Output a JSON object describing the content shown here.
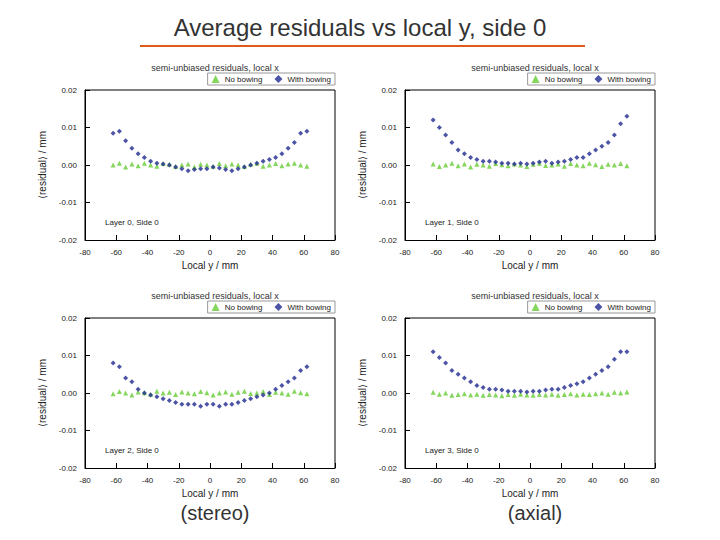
{
  "title": "Average residuals vs local y, side 0",
  "captions": [
    "(stereo)",
    "(axial)"
  ],
  "chart_data": [
    {
      "type": "scatter",
      "title": "semi-unbiased residuals, local x",
      "xlabel": "Local y / mm",
      "ylabel": "⟨residual⟩ / mm",
      "annotation": "Layer 0, Side 0",
      "x": [
        -62,
        -58,
        -54,
        -50,
        -46,
        -42,
        -38,
        -34,
        -30,
        -26,
        -22,
        -18,
        -14,
        -10,
        -6,
        -2,
        2,
        6,
        10,
        14,
        18,
        22,
        26,
        30,
        34,
        38,
        42,
        46,
        50,
        54,
        58,
        62
      ],
      "series": [
        {
          "name": "No bowing",
          "color": "#66cc33",
          "marker": "triangle",
          "values": [
            0.0,
            0.0005,
            -0.0005,
            0.0003,
            -0.0002,
            0.0005,
            0.0,
            -0.0003,
            0.0004,
            0.0002,
            -0.0004,
            0.0,
            0.0003,
            -0.0005,
            0.0002,
            0.0,
            -0.0003,
            0.0004,
            -0.0002,
            0.0003,
            0.0,
            -0.0004,
            0.0002,
            0.0005,
            -0.0003,
            0.0,
            0.0004,
            -0.0002,
            0.0003,
            0.0005,
            0.0,
            -0.0003
          ]
        },
        {
          "name": "With bowing",
          "color": "#1f2a8f",
          "marker": "diamond",
          "values": [
            0.0085,
            0.009,
            0.0065,
            0.0045,
            0.003,
            0.002,
            0.001,
            0.0005,
            0.0003,
            0.0,
            -0.0005,
            -0.001,
            -0.0015,
            -0.0012,
            -0.001,
            -0.001,
            -0.0005,
            -0.0008,
            -0.0012,
            -0.0015,
            -0.001,
            -0.0005,
            0.0,
            0.0005,
            0.001,
            0.0015,
            0.002,
            0.003,
            0.0045,
            0.006,
            0.0085,
            0.009
          ]
        }
      ],
      "xlim": [
        -80,
        80
      ],
      "xticks": [
        -80,
        -60,
        -40,
        -20,
        0,
        20,
        40,
        60,
        80
      ],
      "ylim": [
        -0.02,
        0.02
      ],
      "yticks": [
        -0.02,
        -0.01,
        {
          "value": 0,
          "label": "0.00"
        },
        0.01,
        0.02
      ],
      "legend": "upper right",
      "grid": false
    },
    {
      "type": "scatter",
      "title": "semi-unbiased residuals, local x",
      "xlabel": "Local y / mm",
      "ylabel": "⟨residual⟩ / mm",
      "annotation": "Layer 1, Side 0",
      "x": [
        -62,
        -58,
        -54,
        -50,
        -46,
        -42,
        -38,
        -34,
        -30,
        -26,
        -22,
        -18,
        -14,
        -10,
        -6,
        -2,
        2,
        6,
        10,
        14,
        18,
        22,
        26,
        30,
        34,
        38,
        42,
        46,
        50,
        54,
        58,
        62
      ],
      "series": [
        {
          "name": "No bowing",
          "color": "#66cc33",
          "marker": "triangle",
          "values": [
            0.0003,
            -0.0004,
            0.0,
            0.0005,
            -0.0002,
            0.0003,
            -0.0005,
            0.0002,
            0.0,
            -0.0003,
            0.0004,
            0.0001,
            -0.0002,
            0.0003,
            0.0,
            -0.0004,
            0.0002,
            0.0005,
            -0.0001,
            0.0,
            0.0003,
            -0.0003,
            0.0004,
            0.0,
            -0.0002,
            0.0005,
            0.0001,
            -0.0004,
            0.0002,
            0.0,
            0.0004,
            -0.0002
          ]
        },
        {
          "name": "With bowing",
          "color": "#1f2a8f",
          "marker": "diamond",
          "values": [
            0.012,
            0.01,
            0.008,
            0.006,
            0.004,
            0.003,
            0.002,
            0.0015,
            0.001,
            0.001,
            0.0008,
            0.0005,
            0.0005,
            0.0003,
            0.0005,
            0.0003,
            0.0005,
            0.0008,
            0.001,
            0.0005,
            0.0008,
            0.001,
            0.0015,
            0.002,
            0.002,
            0.003,
            0.004,
            0.005,
            0.006,
            0.008,
            0.011,
            0.013
          ]
        }
      ],
      "xlim": [
        -80,
        80
      ],
      "xticks": [
        -80,
        -60,
        -40,
        -20,
        0,
        20,
        40,
        60,
        80
      ],
      "ylim": [
        -0.02,
        0.02
      ],
      "yticks": [
        -0.02,
        -0.01,
        {
          "value": 0,
          "label": "0.00"
        },
        0.01,
        0.02
      ],
      "legend": "upper right",
      "grid": false
    },
    {
      "type": "scatter",
      "title": "semi-unbiased residuals, local x",
      "xlabel": "Local y / mm",
      "ylabel": "⟨residual⟩ / mm",
      "annotation": "Layer 2, Side 0",
      "x": [
        -62,
        -58,
        -54,
        -50,
        -46,
        -42,
        -38,
        -34,
        -30,
        -26,
        -22,
        -18,
        -14,
        -10,
        -6,
        -2,
        2,
        6,
        10,
        14,
        18,
        22,
        26,
        30,
        34,
        38,
        42,
        46,
        50,
        54,
        58,
        62
      ],
      "series": [
        {
          "name": "No bowing",
          "color": "#66cc33",
          "marker": "triangle",
          "values": [
            -0.0002,
            0.0004,
            0.0,
            -0.0005,
            0.0003,
            0.0001,
            -0.0003,
            0.0005,
            0.0,
            0.0002,
            -0.0004,
            0.0003,
            0.0,
            -0.0002,
            0.0004,
            0.0001,
            -0.0005,
            0.0,
            0.0003,
            -0.0003,
            0.0002,
            0.0005,
            -0.0001,
            0.0,
            0.0004,
            -0.0004,
            0.0002,
            0.0,
            -0.0003,
            0.0005,
            0.0001,
            -0.0002
          ]
        },
        {
          "name": "With bowing",
          "color": "#1f2a8f",
          "marker": "diamond",
          "values": [
            0.008,
            0.007,
            0.004,
            0.003,
            0.001,
            0.0,
            -0.0005,
            -0.001,
            -0.0015,
            -0.002,
            -0.0025,
            -0.003,
            -0.003,
            -0.003,
            -0.0035,
            -0.003,
            -0.003,
            -0.0035,
            -0.003,
            -0.003,
            -0.0025,
            -0.002,
            -0.0015,
            -0.001,
            -0.0005,
            0.0,
            0.001,
            0.002,
            0.003,
            0.004,
            0.006,
            0.007
          ]
        }
      ],
      "xlim": [
        -80,
        80
      ],
      "xticks": [
        -80,
        -60,
        -40,
        -20,
        0,
        20,
        40,
        60,
        80
      ],
      "ylim": [
        -0.02,
        0.02
      ],
      "yticks": [
        -0.02,
        -0.01,
        {
          "value": 0,
          "label": "0.00"
        },
        0.01,
        0.02
      ],
      "legend": "upper right",
      "grid": false
    },
    {
      "type": "scatter",
      "title": "semi-unbiased residuals, local x",
      "xlabel": "Local y / mm",
      "ylabel": "⟨residual⟩ / mm",
      "annotation": "Layer 3, Side 0",
      "x": [
        -62,
        -58,
        -54,
        -50,
        -46,
        -42,
        -38,
        -34,
        -30,
        -26,
        -22,
        -18,
        -14,
        -10,
        -6,
        -2,
        2,
        6,
        10,
        14,
        18,
        22,
        26,
        30,
        34,
        38,
        42,
        46,
        50,
        54,
        58,
        62
      ],
      "series": [
        {
          "name": "No bowing",
          "color": "#66cc33",
          "marker": "triangle",
          "values": [
            0.0002,
            -0.0003,
            0.0,
            -0.0006,
            -0.0004,
            -0.0002,
            -0.0005,
            -0.0003,
            -0.0006,
            -0.0004,
            -0.0005,
            -0.0007,
            -0.0004,
            -0.0006,
            -0.0003,
            -0.0005,
            -0.0006,
            -0.0004,
            -0.0005,
            -0.0003,
            -0.0006,
            -0.0004,
            -0.0002,
            -0.0005,
            -0.0003,
            -0.0004,
            -0.0002,
            0.0,
            -0.0003,
            0.0002,
            0.0,
            0.0003
          ]
        },
        {
          "name": "With bowing",
          "color": "#1f2a8f",
          "marker": "diamond",
          "values": [
            0.011,
            0.0095,
            0.008,
            0.006,
            0.005,
            0.004,
            0.003,
            0.002,
            0.0015,
            0.001,
            0.001,
            0.0008,
            0.0005,
            0.0005,
            0.0005,
            0.0003,
            0.0005,
            0.0005,
            0.0008,
            0.001,
            0.001,
            0.0015,
            0.002,
            0.0025,
            0.003,
            0.004,
            0.005,
            0.006,
            0.007,
            0.009,
            0.011,
            0.011
          ]
        }
      ],
      "xlim": [
        -80,
        80
      ],
      "xticks": [
        -80,
        -60,
        -40,
        -20,
        0,
        20,
        40,
        60,
        80
      ],
      "ylim": [
        -0.02,
        0.02
      ],
      "yticks": [
        -0.02,
        -0.01,
        {
          "value": 0,
          "label": "0.00"
        },
        0.01,
        0.02
      ],
      "legend": "upper right",
      "grid": false
    }
  ]
}
